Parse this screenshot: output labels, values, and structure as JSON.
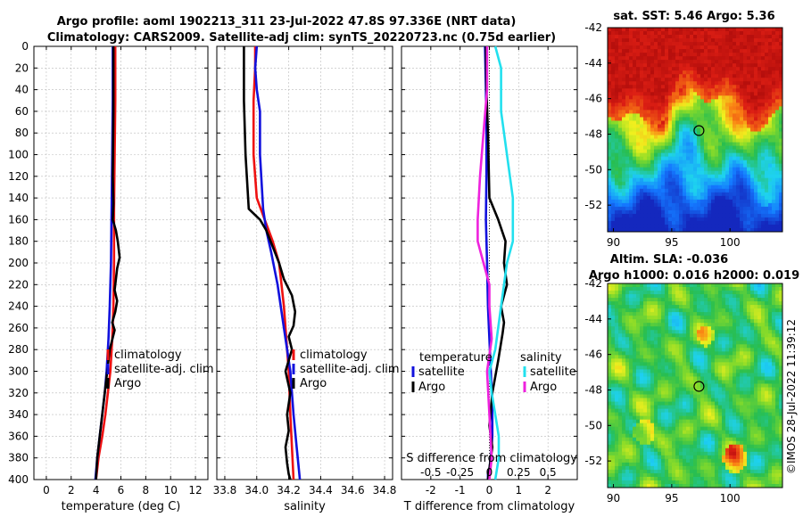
{
  "titles": {
    "line1": "Argo profile: aoml 1902213_311 23-Jul-2022 47.8S 97.336E (NRT data)",
    "line2": "Climatology: CARS2009. Satellite-adj clim: synTS_20220723.nc (0.75d earlier)",
    "sst": "sat. SST: 5.46 Argo: 5.36",
    "sla1": "Altim. SLA: -0.036",
    "sla2": "Argo h1000: 0.016 h2000: 0.019",
    "stamp": "©IMOS 28-Jul-2022 11:39:12"
  },
  "colors": {
    "climatology": "#ee1111",
    "satellite": "#1111dd",
    "argo": "#000000",
    "sal_satellite": "#22e0ee",
    "sal_argo": "#ee22dd"
  },
  "chart_data": [
    {
      "type": "line",
      "name": "temperature-panel",
      "xlabel": "temperature (deg C)",
      "ylabel": "",
      "xlim": [
        -1,
        13
      ],
      "ylim": [
        400,
        0
      ],
      "grid": true,
      "xticks": [
        0,
        2,
        4,
        6,
        8,
        10,
        12
      ],
      "yticks": [
        0,
        20,
        40,
        60,
        80,
        100,
        120,
        140,
        160,
        180,
        200,
        220,
        240,
        260,
        280,
        300,
        320,
        340,
        360,
        380,
        400
      ],
      "legend_position": "lower-middle",
      "series": [
        {
          "name": "climatology",
          "x": [
            5.55,
            5.55,
            5.5,
            5.45,
            5.45,
            5.4,
            5.3,
            5.15,
            4.95,
            4.75,
            4.5,
            4.2,
            4.0
          ],
          "y": [
            0,
            50,
            100,
            150,
            200,
            240,
            270,
            300,
            320,
            340,
            360,
            380,
            400
          ]
        },
        {
          "name": "satellite-adj. clim",
          "x": [
            5.35,
            5.35,
            5.3,
            5.25,
            5.2,
            5.1,
            5.0,
            4.85,
            4.7,
            4.5,
            4.3,
            4.1,
            3.95
          ],
          "y": [
            0,
            50,
            100,
            150,
            200,
            240,
            270,
            300,
            320,
            340,
            360,
            380,
            400
          ]
        },
        {
          "name": "Argo",
          "x": [
            5.4,
            5.4,
            5.35,
            5.4,
            5.35,
            5.6,
            5.75,
            5.9,
            5.7,
            5.6,
            5.5,
            5.7,
            5.55,
            5.3,
            5.5,
            5.1,
            4.9,
            4.7,
            4.5,
            4.3,
            4.1,
            4.0
          ],
          "y": [
            0,
            60,
            120,
            145,
            160,
            170,
            180,
            195,
            205,
            215,
            225,
            235,
            245,
            255,
            262,
            280,
            300,
            320,
            340,
            360,
            380,
            400
          ]
        }
      ]
    },
    {
      "type": "line",
      "name": "salinity-panel",
      "xlabel": "salinity",
      "ylabel": "",
      "xlim": [
        33.75,
        34.85
      ],
      "ylim": [
        400,
        0
      ],
      "grid": true,
      "xticks": [
        33.8,
        34,
        34.2,
        34.4,
        34.6,
        34.8
      ],
      "legend_position": "lower-right",
      "series": [
        {
          "name": "climatology",
          "x": [
            33.99,
            33.99,
            33.98,
            33.98,
            34.0,
            34.05,
            34.1,
            34.14,
            34.17,
            34.19,
            34.2,
            34.21,
            34.22,
            34.23
          ],
          "y": [
            0,
            20,
            50,
            100,
            140,
            160,
            180,
            200,
            240,
            280,
            300,
            340,
            370,
            400
          ]
        },
        {
          "name": "satellite-adj. clim",
          "x": [
            34.0,
            33.99,
            34.0,
            34.02,
            34.02,
            34.04,
            34.06,
            34.09,
            34.13,
            34.17,
            34.21,
            34.23,
            34.25,
            34.27
          ],
          "y": [
            0,
            20,
            40,
            60,
            100,
            150,
            170,
            190,
            220,
            260,
            300,
            340,
            370,
            400
          ]
        },
        {
          "name": "Argo",
          "x": [
            33.92,
            33.92,
            33.92,
            33.93,
            33.95,
            34.02,
            34.06,
            34.1,
            34.14,
            34.17,
            34.22,
            34.24,
            34.23,
            34.2,
            34.22,
            34.18,
            34.21,
            34.19,
            34.2,
            34.18,
            34.19,
            34.2,
            34.21
          ],
          "y": [
            0,
            20,
            50,
            100,
            150,
            160,
            170,
            185,
            200,
            215,
            230,
            245,
            258,
            268,
            280,
            300,
            320,
            340,
            355,
            370,
            385,
            395,
            400
          ]
        }
      ]
    },
    {
      "type": "line",
      "name": "difference-panel",
      "xlabel": "T difference from climatology",
      "x2label": "S difference from climatology",
      "xlim": [
        -3,
        3
      ],
      "ylim": [
        400,
        0
      ],
      "grid": true,
      "xticks": [
        -2,
        -1,
        0,
        1,
        2
      ],
      "x2ticks": [
        -0.5,
        -0.25,
        0,
        0.25,
        0.5
      ],
      "x2tick_labels": [
        "-0.5",
        "-0.25",
        "0",
        "0.25",
        "0.5"
      ],
      "legend_position": "lower",
      "legend_headers": [
        "temperature",
        "salinity"
      ],
      "series": [
        {
          "name": "temperature satellite",
          "x": [
            -0.15,
            -0.12,
            -0.1,
            -0.1,
            -0.12,
            -0.08,
            -0.05,
            0.0,
            0.05,
            0.08,
            0.1,
            0.1,
            0.05,
            0.0,
            -0.05,
            -0.05
          ],
          "y": [
            0,
            40,
            80,
            120,
            160,
            200,
            240,
            270,
            300,
            320,
            340,
            360,
            380,
            390,
            395,
            400
          ]
        },
        {
          "name": "temperature Argo",
          "x": [
            -0.12,
            -0.1,
            -0.05,
            0.0,
            0.3,
            0.55,
            0.5,
            0.6,
            0.4,
            0.5,
            0.45,
            0.3,
            0.1,
            0.0,
            0.1,
            0.0,
            -0.05
          ],
          "y": [
            0,
            40,
            80,
            140,
            160,
            180,
            200,
            220,
            240,
            255,
            265,
            290,
            320,
            350,
            370,
            390,
            400
          ]
        },
        {
          "name": "salinity satellite",
          "x": [
            0.05,
            0.1,
            0.1,
            0.15,
            0.2,
            0.2,
            0.15,
            0.1,
            0.05,
            0.0,
            0.02,
            0.05,
            0.08,
            0.08,
            0.05
          ],
          "y": [
            0,
            20,
            60,
            100,
            140,
            180,
            200,
            240,
            280,
            300,
            320,
            340,
            360,
            380,
            400
          ]
        },
        {
          "name": "salinity Argo",
          "x": [
            -0.02,
            -0.02,
            -0.05,
            -0.08,
            -0.1,
            -0.1,
            -0.05,
            0.0,
            0.0,
            0.02,
            -0.02,
            0.0,
            0.02,
            0.0
          ],
          "y": [
            0,
            40,
            80,
            120,
            160,
            180,
            200,
            220,
            240,
            270,
            300,
            340,
            380,
            400
          ]
        }
      ]
    },
    {
      "type": "heatmap",
      "name": "sst-map",
      "title": "sat. SST: 5.46 Argo: 5.36",
      "xlim": [
        89.5,
        104.5
      ],
      "ylim": [
        -53.5,
        -42
      ],
      "xticks": [
        90,
        95,
        100
      ],
      "yticks": [
        -42,
        -44,
        -46,
        -48,
        -50,
        -52
      ],
      "marker": {
        "lon": 97.336,
        "lat": -47.8
      }
    },
    {
      "type": "heatmap",
      "name": "sla-map",
      "title": "Altim. SLA: -0.036",
      "subtitle": "Argo h1000: 0.016 h2000: 0.019",
      "xlim": [
        89.5,
        104.5
      ],
      "ylim": [
        -53.5,
        -42
      ],
      "xticks": [
        90,
        95,
        100
      ],
      "yticks": [
        -42,
        -44,
        -46,
        -48,
        -50,
        -52
      ],
      "marker": {
        "lon": 97.336,
        "lat": -47.8
      }
    }
  ]
}
